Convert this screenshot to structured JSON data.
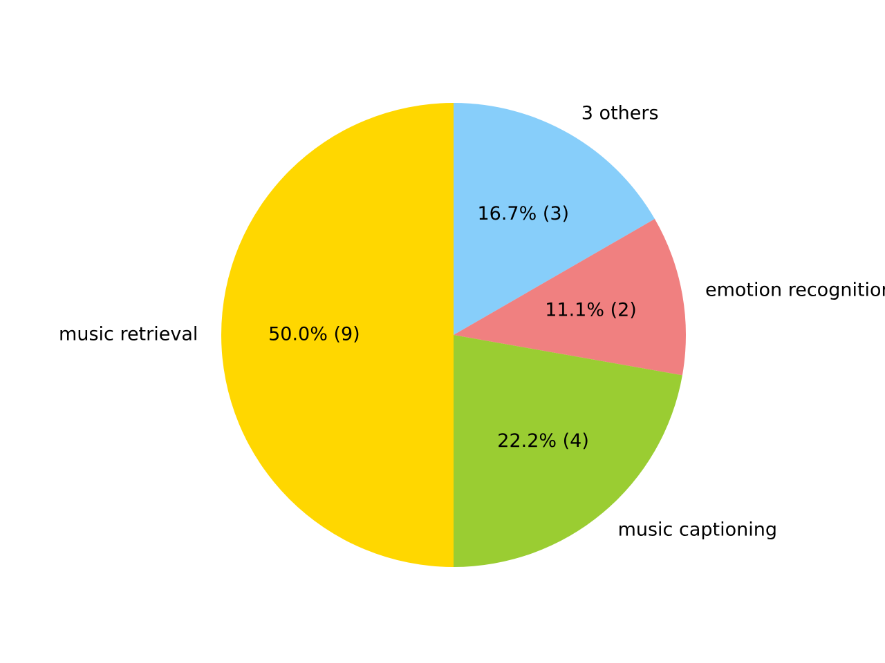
{
  "chart_data": {
    "type": "pie",
    "start_angle_deg": 90,
    "direction": "clockwise",
    "slices": [
      {
        "label": "3 others",
        "value": 3,
        "pct_label": "16.7%  (3)",
        "color": "#87CEFA"
      },
      {
        "label": "emotion recognition",
        "value": 2,
        "pct_label": "11.1%  (2)",
        "color": "#F08080"
      },
      {
        "label": "music captioning",
        "value": 4,
        "pct_label": "22.2%  (4)",
        "color": "#9ACD32"
      },
      {
        "label": "music retrieval",
        "value": 9,
        "pct_label": "50.0%  (9)",
        "color": "#FFD700"
      }
    ]
  }
}
